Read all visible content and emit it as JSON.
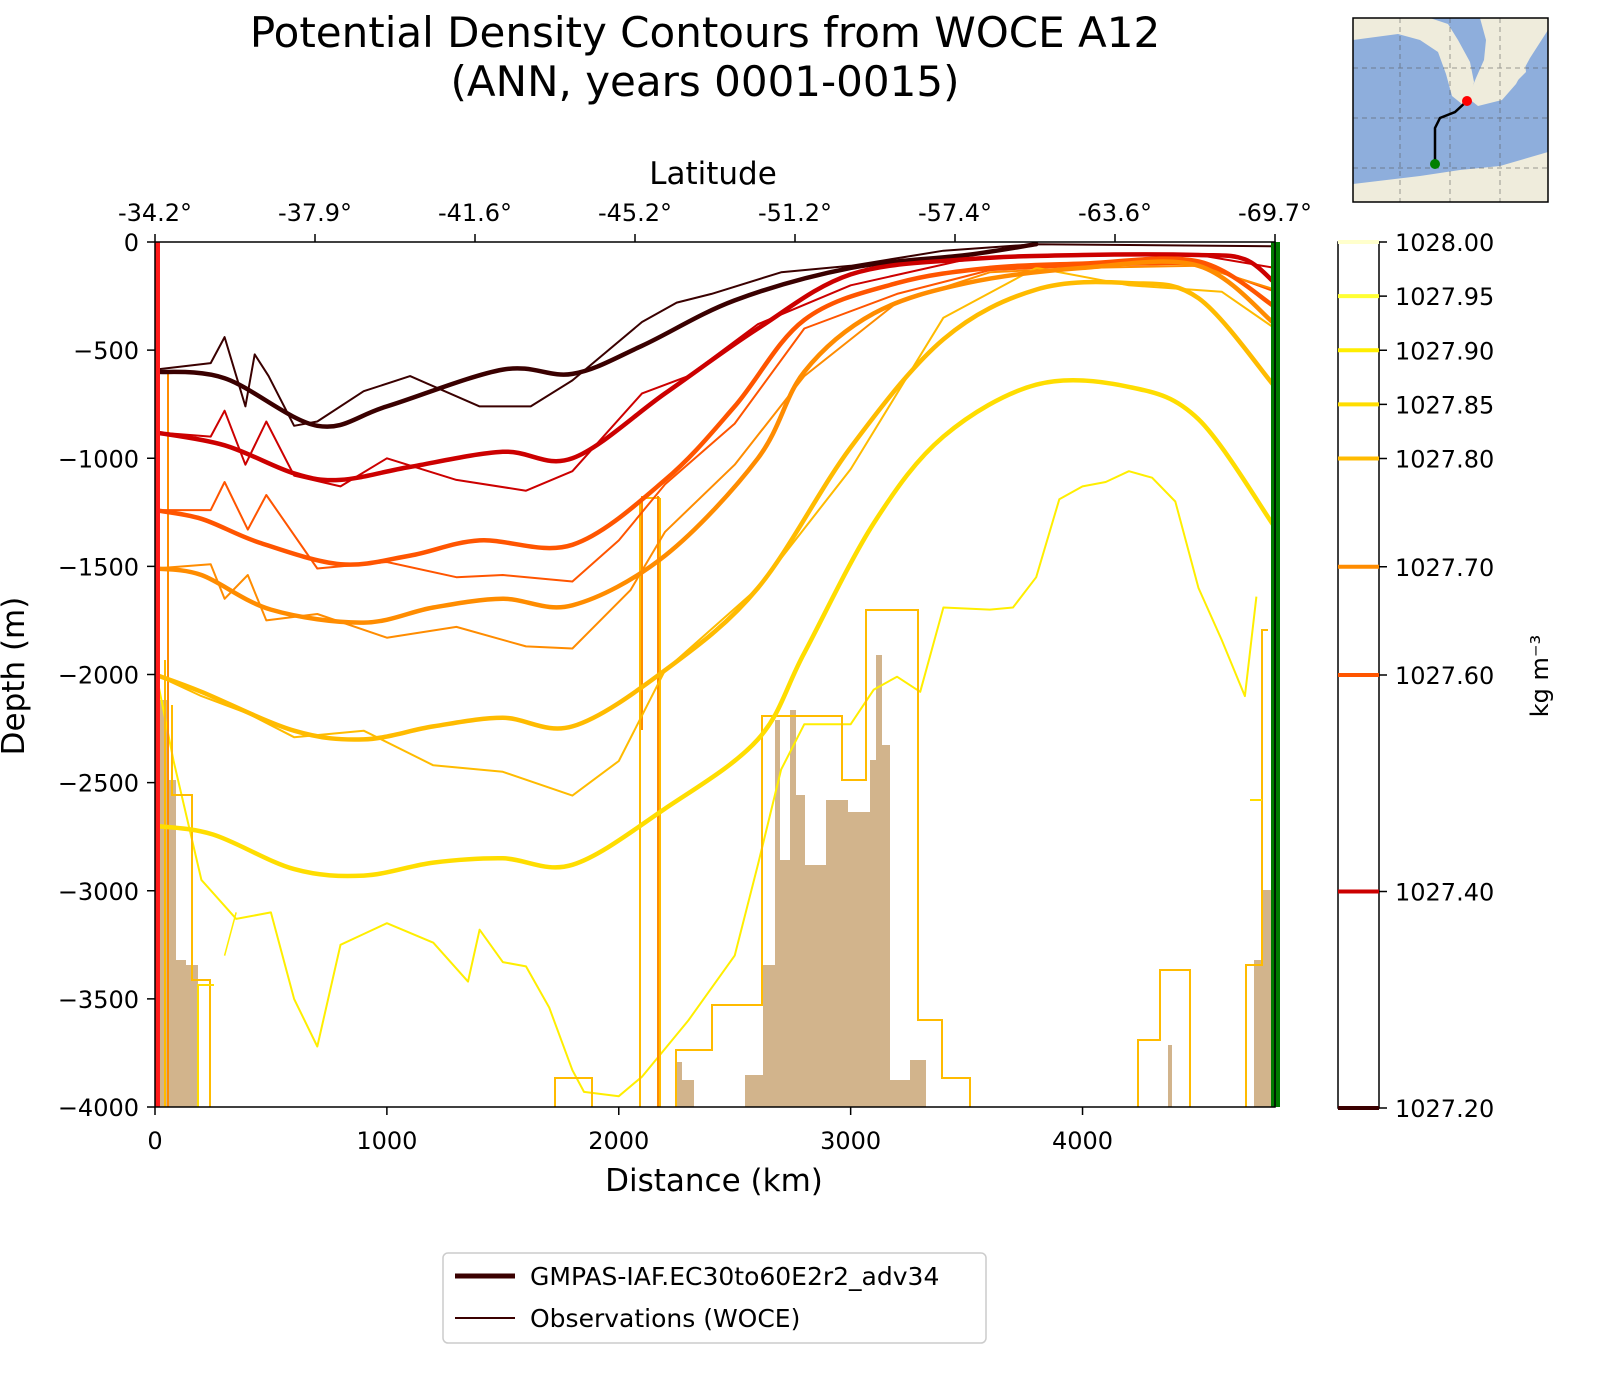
{
  "chart_data": {
    "type": "line",
    "title": "Potential Density Contours from WOCE A12",
    "subtitle": "(ANN, years 0001-0015)",
    "xlabel": "Distance (km)",
    "ylabel": "Depth (m)",
    "top_axis_label": "Latitude",
    "xlim": [
      0,
      4830
    ],
    "ylim": [
      -4000,
      0
    ],
    "x_ticks": [
      0,
      1000,
      2000,
      3000,
      4000
    ],
    "y_ticks": [
      0,
      -500,
      -1000,
      -1500,
      -2000,
      -2500,
      -3000,
      -3500,
      -4000
    ],
    "x_tick_labels": [
      "0",
      "1000",
      "2000",
      "3000",
      "4000"
    ],
    "y_tick_labels": [
      "0",
      "−500",
      "−1000",
      "−1500",
      "−2000",
      "−2500",
      "−3000",
      "−3500",
      "−4000"
    ],
    "latitude_ticks": [
      {
        "x": 0,
        "label": "-34.2°"
      },
      {
        "x": 690,
        "label": "-37.9°"
      },
      {
        "x": 1380,
        "label": "-41.6°"
      },
      {
        "x": 2070,
        "label": "-45.2°"
      },
      {
        "x": 2760,
        "label": "-51.2°"
      },
      {
        "x": 3450,
        "label": "-57.4°"
      },
      {
        "x": 4140,
        "label": "-63.6°"
      },
      {
        "x": 4830,
        "label": "-69.7°"
      }
    ],
    "colorbar": {
      "label": "kg m⁻³",
      "min": 1027.2,
      "max": 1028.0,
      "ticks": [
        {
          "value": 1028.0,
          "label": "1028.00",
          "color": "#ffffcc"
        },
        {
          "value": 1027.95,
          "label": "1027.95",
          "color": "#ffff33"
        },
        {
          "value": 1027.9,
          "label": "1027.90",
          "color": "#ffee00"
        },
        {
          "value": 1027.85,
          "label": "1027.85",
          "color": "#ffdd00"
        },
        {
          "value": 1027.8,
          "label": "1027.80",
          "color": "#ffbb00"
        },
        {
          "value": 1027.7,
          "label": "1027.70",
          "color": "#ff8c00"
        },
        {
          "value": 1027.6,
          "label": "1027.60",
          "color": "#ff5500"
        },
        {
          "value": 1027.4,
          "label": "1027.40",
          "color": "#cc0000"
        },
        {
          "value": 1027.2,
          "label": "1027.20",
          "color": "#3a0000"
        }
      ]
    },
    "legend": {
      "placement": "below",
      "entries": [
        {
          "label": "GMPAS-IAF.EC30to60E2r2_adv34",
          "style": "thick",
          "color": "#3a0000"
        },
        {
          "label": "Observations (WOCE)",
          "style": "thin",
          "color": "#3a0000"
        }
      ]
    },
    "section_endpoint_colors": {
      "start": "#ff0000",
      "end": "#008000"
    },
    "bathymetry_color": "#d2b48c",
    "model_contours": [
      {
        "value": 1027.2,
        "color": "#3a0000",
        "x": [
          0,
          300,
          700,
          1000,
          1500,
          1800,
          2100,
          2500,
          3000,
          3500,
          3800
        ],
        "y": [
          -600,
          -630,
          -850,
          -760,
          -590,
          -610,
          -480,
          -270,
          -120,
          -60,
          -10
        ]
      },
      {
        "value": 1027.4,
        "color": "#cc0000",
        "x": [
          0,
          300,
          600,
          800,
          1100,
          1500,
          1800,
          2200,
          2600,
          3000,
          3500,
          4000,
          4500,
          4700,
          4830
        ],
        "y": [
          -880,
          -940,
          -1070,
          -1100,
          -1040,
          -970,
          -1000,
          -700,
          -400,
          -150,
          -80,
          -60,
          -60,
          -80,
          -190
        ]
      },
      {
        "value": 1027.6,
        "color": "#ff5500",
        "x": [
          0,
          200,
          450,
          800,
          1100,
          1400,
          1800,
          2200,
          2500,
          2800,
          3200,
          3600,
          4000,
          4500,
          4830
        ],
        "y": [
          -1240,
          -1280,
          -1390,
          -1490,
          -1450,
          -1380,
          -1400,
          -1100,
          -760,
          -360,
          -190,
          -120,
          -100,
          -90,
          -300
        ]
      },
      {
        "value": 1027.7,
        "color": "#ff8c00",
        "x": [
          0,
          200,
          500,
          900,
          1200,
          1500,
          1800,
          2200,
          2600,
          2800,
          3100,
          3500,
          4000,
          4500,
          4830
        ],
        "y": [
          -1510,
          -1540,
          -1700,
          -1760,
          -1690,
          -1650,
          -1680,
          -1450,
          -1000,
          -600,
          -330,
          -190,
          -120,
          -110,
          -380
        ]
      },
      {
        "value": 1027.8,
        "color": "#ffbb00",
        "x": [
          0,
          200,
          600,
          900,
          1200,
          1500,
          1800,
          2200,
          2600,
          3000,
          3400,
          3800,
          4200,
          4500,
          4830
        ],
        "y": [
          -2000,
          -2080,
          -2260,
          -2300,
          -2240,
          -2200,
          -2240,
          -1980,
          -1600,
          -950,
          -450,
          -220,
          -190,
          -260,
          -670
        ]
      },
      {
        "value": 1027.85,
        "color": "#ffdd00",
        "x": [
          0,
          250,
          600,
          900,
          1200,
          1500,
          1800,
          2200,
          2600,
          2800,
          3100,
          3400,
          3800,
          4200,
          4500,
          4830
        ],
        "y": [
          -2700,
          -2740,
          -2900,
          -2930,
          -2870,
          -2850,
          -2880,
          -2620,
          -2300,
          -1900,
          -1300,
          -900,
          -660,
          -670,
          -820,
          -1320
        ]
      }
    ],
    "observed_contours": [
      {
        "value": 1027.2,
        "color": "#3a0000",
        "x": [
          0,
          240,
          300,
          390,
          430,
          490,
          600,
          700,
          900,
          1100,
          1400,
          1620,
          1800,
          2100,
          2250,
          2400,
          2700,
          3000,
          3400,
          3800,
          4830
        ],
        "y": [
          -590,
          -560,
          -440,
          -760,
          -520,
          -620,
          -850,
          -830,
          -690,
          -620,
          -760,
          -760,
          -640,
          -370,
          -280,
          -240,
          -140,
          -110,
          -40,
          -10,
          -20
        ]
      },
      {
        "value": 1027.4,
        "color": "#cc0000",
        "x": [
          0,
          240,
          300,
          390,
          480,
          600,
          800,
          1000,
          1300,
          1600,
          1800,
          2100,
          2300,
          2600,
          3000,
          3500,
          4000,
          4500,
          4830
        ],
        "y": [
          -880,
          -900,
          -780,
          -1030,
          -830,
          -1080,
          -1130,
          -1000,
          -1100,
          -1150,
          -1060,
          -700,
          -620,
          -380,
          -200,
          -80,
          -60,
          -60,
          -120
        ]
      },
      {
        "value": 1027.6,
        "color": "#ff5500",
        "x": [
          0,
          240,
          300,
          400,
          480,
          700,
          1000,
          1300,
          1500,
          1800,
          2000,
          2200,
          2500,
          2800,
          3200,
          3600,
          4000,
          4500,
          4830
        ],
        "y": [
          -1240,
          -1240,
          -1110,
          -1330,
          -1170,
          -1510,
          -1480,
          -1550,
          -1540,
          -1570,
          -1380,
          -1120,
          -840,
          -400,
          -240,
          -130,
          -110,
          -100,
          -230
        ]
      },
      {
        "value": 1027.7,
        "color": "#ff8c00",
        "x": [
          0,
          240,
          300,
          400,
          480,
          700,
          1000,
          1300,
          1600,
          1800,
          2050,
          2200,
          2500,
          2800,
          3200,
          3600,
          4000,
          4500,
          4830
        ],
        "y": [
          -1510,
          -1490,
          -1650,
          -1540,
          -1750,
          -1720,
          -1830,
          -1780,
          -1870,
          -1880,
          -1610,
          -1340,
          -1030,
          -620,
          -280,
          -140,
          -120,
          -110,
          -220
        ]
      },
      {
        "value": 1027.8,
        "color": "#ffbb00",
        "x": [
          0,
          200,
          400,
          600,
          900,
          1200,
          1500,
          1800,
          2000,
          2200,
          2600,
          3000,
          3400,
          3800,
          4200,
          4600,
          4830
        ],
        "y": [
          -2000,
          -2100,
          -2180,
          -2290,
          -2260,
          -2420,
          -2450,
          -2560,
          -2400,
          -1980,
          -1600,
          -1050,
          -350,
          -120,
          -200,
          -230,
          -400
        ]
      }
    ],
    "deep_contour_1027_9": {
      "value": 1027.9,
      "color": "#ffee00",
      "x": [
        0,
        80,
        200,
        350,
        500,
        600,
        700,
        800,
        900,
        1000,
        1200,
        1350,
        1400,
        1500,
        1600,
        1700,
        1800,
        1850,
        2000,
        2100,
        2300,
        2500,
        2600,
        2700,
        2800,
        2900,
        3000,
        3100,
        3200,
        3300,
        3400,
        3600,
        3700,
        3800,
        3900,
        4000,
        4100,
        4200,
        4300,
        4400,
        4500,
        4600,
        4700,
        4750
      ],
      "y": [
        -1970,
        -2400,
        -2950,
        -3130,
        -3100,
        -3500,
        -3720,
        -3250,
        -3200,
        -3150,
        -3240,
        -3420,
        -3180,
        -3330,
        -3350,
        -3540,
        -3830,
        -3930,
        -3950,
        -3860,
        -3600,
        -3300,
        -2880,
        -2440,
        -2230,
        -2230,
        -2230,
        -2070,
        -2010,
        -2080,
        -1690,
        -1700,
        -1690,
        -1550,
        -1190,
        -1130,
        -1110,
        -1060,
        -1090,
        -1200,
        -1600,
        -1840,
        -2100,
        -1640
      ]
    }
  }
}
